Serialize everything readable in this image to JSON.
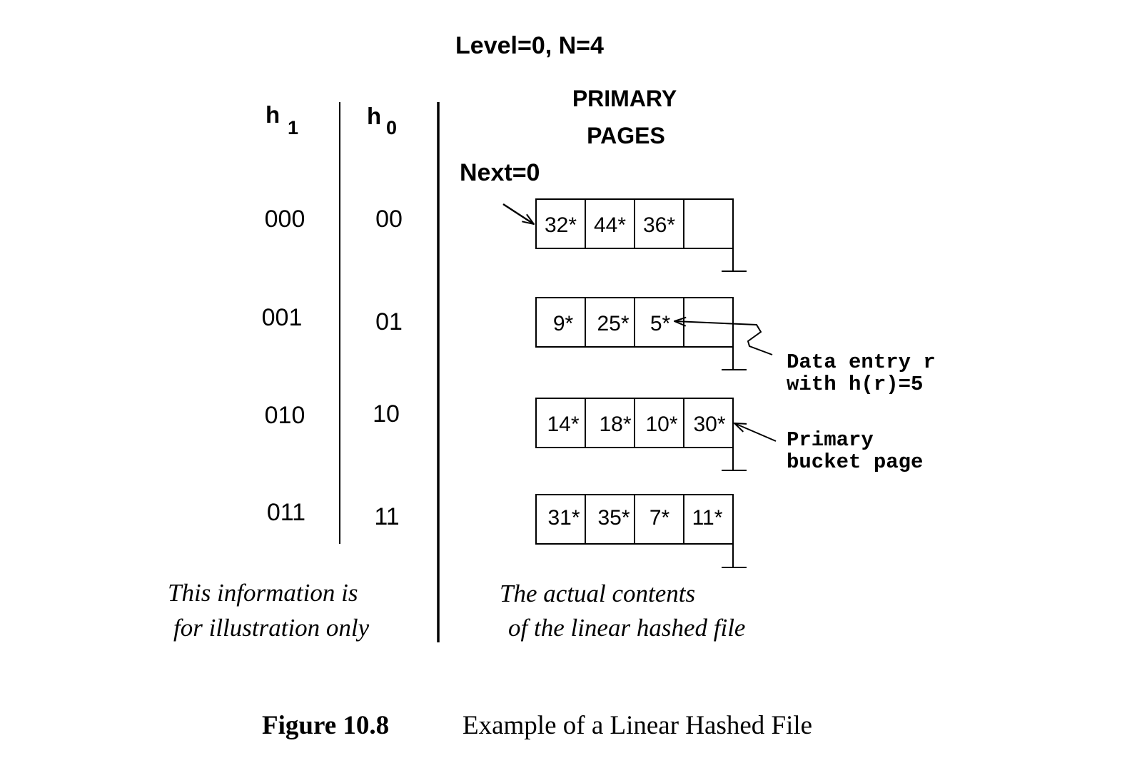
{
  "title": "Level=0, N=4",
  "columns": {
    "h1_base": "h",
    "h1_sub": "1",
    "h0_base": "h",
    "h0_sub": "0"
  },
  "primary_pages_label": [
    "PRIMARY",
    "PAGES"
  ],
  "next_label": "Next=0",
  "rows": [
    {
      "h1": "000",
      "h0": "00",
      "entries": [
        "32*",
        "44*",
        "36*",
        ""
      ]
    },
    {
      "h1": "001",
      "h0": "01",
      "entries": [
        "9*",
        "25*",
        "5*",
        ""
      ]
    },
    {
      "h1": "010",
      "h0": "10",
      "entries": [
        "14*",
        "18*",
        "10*",
        "30*"
      ]
    },
    {
      "h1": "011",
      "h0": "11",
      "entries": [
        "31*",
        "35*",
        "7*",
        "11*"
      ]
    }
  ],
  "annotations": {
    "data_entry": [
      "Data entry r",
      "with h(r)=5"
    ],
    "primary_bucket": [
      "Primary",
      "bucket page"
    ]
  },
  "notes": {
    "left": [
      "This information is",
      "for illustration only"
    ],
    "right": [
      "The actual contents",
      "of the linear hashed file"
    ]
  },
  "caption": {
    "label": "Figure 10.8",
    "text": "Example of a Linear Hashed File"
  }
}
